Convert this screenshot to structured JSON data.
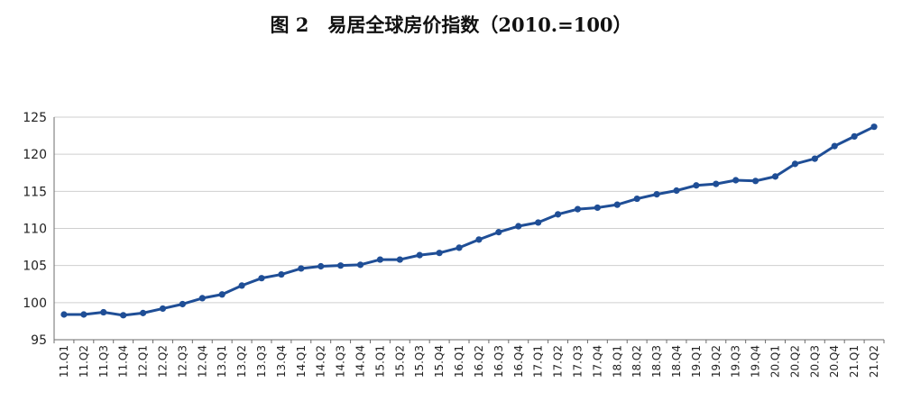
{
  "chart_data": {
    "type": "line",
    "title": "图 2　易居全球房价指数（2010.=100）",
    "xlabel": "",
    "ylabel": "",
    "ylim": [
      95,
      125
    ],
    "yticks": [
      95,
      100,
      105,
      110,
      115,
      120,
      125
    ],
    "grid": true,
    "legend": "none",
    "color": "#1F4E96",
    "categories": [
      "11.Q1",
      "11.Q2",
      "11.Q3",
      "11.Q4",
      "12.Q1",
      "12.Q2",
      "12.Q3",
      "12.Q4",
      "13.Q1",
      "13.Q2",
      "13.Q3",
      "13.Q4",
      "14.Q1",
      "14.Q2",
      "14.Q3",
      "14.Q4",
      "15.Q1",
      "15.Q2",
      "15.Q3",
      "15.Q4",
      "16.Q1",
      "16.Q2",
      "16.Q3",
      "16.Q4",
      "17.Q1",
      "17.Q2",
      "17.Q3",
      "17.Q4",
      "18.Q1",
      "18.Q2",
      "18.Q3",
      "18.Q4",
      "19.Q1",
      "19.Q2",
      "19.Q3",
      "19.Q4",
      "20.Q1",
      "20.Q2",
      "20.Q3",
      "20.Q4",
      "21.Q1",
      "21.Q2"
    ],
    "series": [
      {
        "name": "",
        "values": [
          98.4,
          98.4,
          98.7,
          98.3,
          98.6,
          99.2,
          99.8,
          100.6,
          101.1,
          102.3,
          103.3,
          103.8,
          104.6,
          104.9,
          105.0,
          105.1,
          105.8,
          105.8,
          106.4,
          106.7,
          107.4,
          108.5,
          109.5,
          110.3,
          110.8,
          111.9,
          112.6,
          112.8,
          113.2,
          114.0,
          114.6,
          115.1,
          115.8,
          116.0,
          116.5,
          116.4,
          117.0,
          118.7,
          119.4,
          121.1,
          122.4,
          123.7
        ]
      }
    ]
  }
}
